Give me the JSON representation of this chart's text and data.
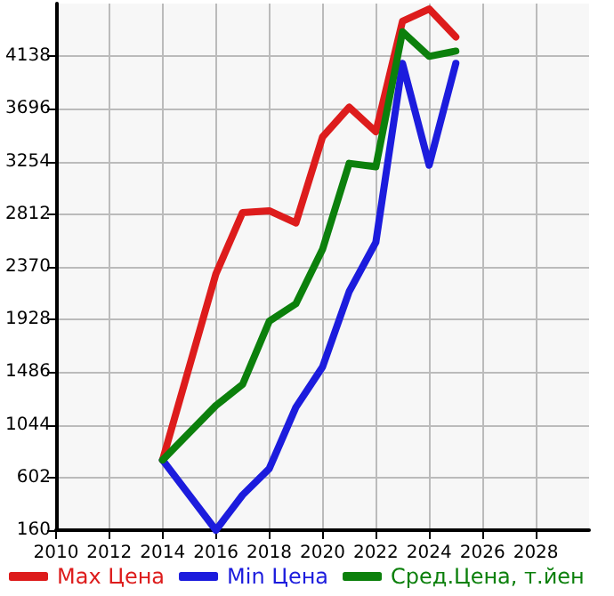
{
  "chart_data": {
    "type": "line",
    "xlim": [
      2010,
      2030
    ],
    "xticks": [
      2010,
      2012,
      2014,
      2016,
      2018,
      2020,
      2022,
      2024,
      2026,
      2028
    ],
    "ylim": [
      160,
      4580
    ],
    "yticks": [
      160,
      602,
      1044,
      1486,
      1928,
      2370,
      2812,
      3254,
      3696,
      4138
    ],
    "grid": true,
    "legend": "bottom",
    "marker": "none",
    "line_style": "solid",
    "series": [
      {
        "name": "Max Цена",
        "color": "#dd1c1c",
        "x": [
          2014,
          2016,
          2017,
          2018,
          2019,
          2020,
          2021,
          2022,
          2023,
          2024,
          2025
        ],
        "values": [
          749,
          2311,
          2826,
          2841,
          2738,
          3460,
          3710,
          3504,
          4432,
          4535,
          4300
        ]
      },
      {
        "name": "Min Цена",
        "color": "#1c1cdd",
        "x": [
          2014,
          2016,
          2017,
          2018,
          2019,
          2020,
          2021,
          2022,
          2023,
          2024,
          2025
        ],
        "values": [
          749,
          160,
          455,
          676,
          1191,
          1530,
          2163,
          2576,
          4078,
          3224,
          4078
        ]
      },
      {
        "name": "Сред.Цена, т.йен",
        "color": "#0c800c",
        "x": [
          2014,
          2016,
          2017,
          2018,
          2019,
          2020,
          2021,
          2022,
          2023,
          2024,
          2025
        ],
        "values": [
          749,
          1206,
          1383,
          1913,
          2060,
          2517,
          3239,
          3210,
          4343,
          4137,
          4181
        ]
      }
    ]
  }
}
